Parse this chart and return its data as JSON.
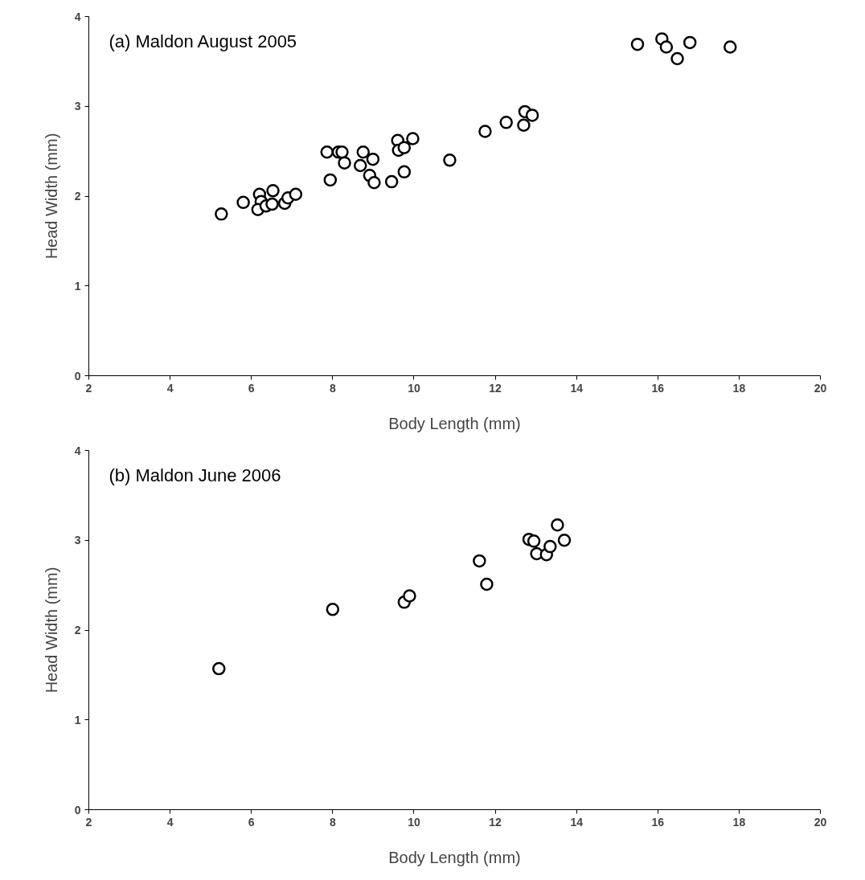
{
  "chart_data": [
    {
      "type": "scatter",
      "title": "(a) Maldon August 2005",
      "xlabel": "Body Length (mm)",
      "ylabel": "Head Width (mm)",
      "x": [
        5.26,
        5.8,
        6.2,
        6.24,
        6.16,
        6.36,
        6.53,
        6.51,
        6.82,
        6.9,
        7.09,
        7.86,
        8.14,
        8.23,
        8.29,
        7.94,
        8.75,
        8.68,
        8.99,
        8.91,
        9.02,
        9.45,
        9.76,
        9.6,
        9.62,
        9.76,
        9.97,
        10.88,
        11.75,
        12.27,
        12.73,
        12.7,
        12.91,
        15.5,
        16.1,
        16.21,
        16.48,
        16.79,
        17.78
      ],
      "values": [
        1.8,
        1.93,
        2.02,
        1.94,
        1.85,
        1.89,
        2.06,
        1.91,
        1.92,
        1.98,
        2.02,
        2.49,
        2.49,
        2.49,
        2.37,
        2.18,
        2.49,
        2.34,
        2.41,
        2.23,
        2.15,
        2.16,
        2.27,
        2.62,
        2.51,
        2.54,
        2.64,
        2.4,
        2.72,
        2.82,
        2.94,
        2.79,
        2.9,
        3.69,
        3.75,
        3.66,
        3.53,
        3.71,
        3.66
      ],
      "color": "#000000",
      "marker": "circle",
      "grid": false,
      "xlim": [
        2,
        20
      ],
      "xticks": [
        2,
        4,
        6,
        8,
        10,
        12,
        14,
        16,
        18,
        20
      ],
      "ylim": [
        0,
        4
      ],
      "yticks": [
        0,
        1,
        2,
        3,
        4
      ]
    },
    {
      "type": "scatter",
      "title": "(b) Maldon June 2006",
      "xlabel": "Body Length (mm)",
      "ylabel": "Head Width (mm)",
      "x": [
        5.2,
        8.0,
        9.76,
        9.89,
        11.61,
        11.79,
        12.83,
        12.95,
        13.02,
        13.26,
        13.35,
        13.53,
        13.7
      ],
      "values": [
        1.57,
        2.23,
        2.31,
        2.38,
        2.77,
        2.51,
        3.01,
        2.99,
        2.85,
        2.84,
        2.93,
        3.17,
        3.0
      ],
      "color": "#000000",
      "marker": "circle",
      "grid": false,
      "xlim": [
        2,
        20
      ],
      "xticks": [
        2,
        4,
        6,
        8,
        10,
        12,
        14,
        16,
        18,
        20
      ],
      "ylim": [
        0,
        4
      ],
      "yticks": [
        0,
        1,
        2,
        3,
        4
      ]
    }
  ]
}
